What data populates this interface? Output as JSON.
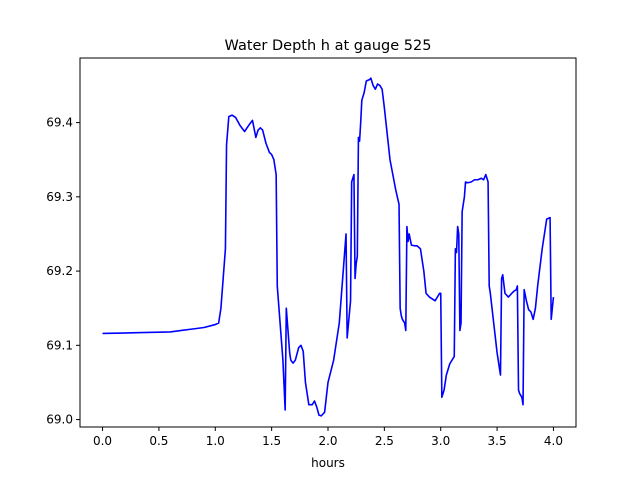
{
  "chart_data": {
    "type": "line",
    "title": "Water Depth h at gauge 525",
    "xlabel": "hours",
    "ylabel": "",
    "xlim": [
      -0.2,
      4.2
    ],
    "ylim": [
      68.99,
      69.487
    ],
    "xticks": [
      0.0,
      0.5,
      1.0,
      1.5,
      2.0,
      2.5,
      3.0,
      3.5,
      4.0
    ],
    "xtick_labels": [
      "0.0",
      "0.5",
      "1.0",
      "1.5",
      "2.0",
      "2.5",
      "3.0",
      "3.5",
      "4.0"
    ],
    "yticks": [
      69.0,
      69.1,
      69.2,
      69.3,
      69.4
    ],
    "ytick_labels": [
      "69.0",
      "69.1",
      "69.2",
      "69.3",
      "69.4"
    ],
    "grid": false,
    "series": [
      {
        "color": "#0000ff",
        "x": [
          0.0,
          0.3,
          0.6,
          0.7,
          0.8,
          0.9,
          1.0,
          1.03,
          1.05,
          1.07,
          1.09,
          1.1,
          1.12,
          1.15,
          1.18,
          1.22,
          1.26,
          1.3,
          1.33,
          1.36,
          1.38,
          1.4,
          1.42,
          1.45,
          1.48,
          1.5,
          1.52,
          1.54,
          1.55,
          1.56,
          1.6,
          1.62,
          1.63,
          1.64,
          1.66,
          1.67,
          1.69,
          1.71,
          1.74,
          1.76,
          1.78,
          1.8,
          1.83,
          1.86,
          1.88,
          1.9,
          1.92,
          1.94,
          1.97,
          2.0,
          2.05,
          2.1,
          2.16,
          2.17,
          2.2,
          2.21,
          2.22,
          2.23,
          2.24,
          2.25,
          2.26,
          2.27,
          2.28,
          2.29,
          2.3,
          2.32,
          2.34,
          2.37,
          2.38,
          2.4,
          2.42,
          2.44,
          2.46,
          2.48,
          2.5,
          2.55,
          2.6,
          2.63,
          2.64,
          2.65,
          2.66,
          2.68,
          2.69,
          2.7,
          2.71,
          2.72,
          2.74,
          2.77,
          2.79,
          2.82,
          2.85,
          2.87,
          2.9,
          2.95,
          2.99,
          3.0,
          3.01,
          3.03,
          3.05,
          3.08,
          3.12,
          3.13,
          3.14,
          3.15,
          3.16,
          3.17,
          3.18,
          3.19,
          3.2,
          3.21,
          3.22,
          3.24,
          3.27,
          3.3,
          3.33,
          3.36,
          3.38,
          3.4,
          3.41,
          3.42,
          3.43,
          3.44,
          3.47,
          3.5,
          3.53,
          3.54,
          3.55,
          3.57,
          3.6,
          3.63,
          3.65,
          3.67,
          3.68,
          3.69,
          3.7,
          3.72,
          3.73,
          3.74,
          3.76,
          3.78,
          3.8,
          3.82,
          3.84,
          3.86,
          3.9,
          3.94,
          3.97,
          3.98,
          3.99,
          4.0
        ],
        "y": [
          69.116,
          69.117,
          69.118,
          69.12,
          69.122,
          69.124,
          69.128,
          69.13,
          69.15,
          69.19,
          69.23,
          69.37,
          69.408,
          69.41,
          69.407,
          69.396,
          69.388,
          69.397,
          69.403,
          69.38,
          69.39,
          69.393,
          69.39,
          69.372,
          69.36,
          69.357,
          69.35,
          69.33,
          69.18,
          69.16,
          69.08,
          69.013,
          69.15,
          69.13,
          69.09,
          69.08,
          69.076,
          69.08,
          69.097,
          69.1,
          69.092,
          69.05,
          69.02,
          69.02,
          69.025,
          69.017,
          69.006,
          69.005,
          69.01,
          69.05,
          69.08,
          69.13,
          69.25,
          69.11,
          69.16,
          69.32,
          69.325,
          69.33,
          69.19,
          69.21,
          69.22,
          69.38,
          69.375,
          69.4,
          69.43,
          69.44,
          69.456,
          69.458,
          69.46,
          69.45,
          69.445,
          69.452,
          69.45,
          69.445,
          69.42,
          69.35,
          69.31,
          69.29,
          69.15,
          69.14,
          69.135,
          69.13,
          69.12,
          69.26,
          69.24,
          69.25,
          69.235,
          69.234,
          69.234,
          69.23,
          69.2,
          69.17,
          69.165,
          69.16,
          69.17,
          69.17,
          69.03,
          69.04,
          69.06,
          69.075,
          69.085,
          69.23,
          69.225,
          69.26,
          69.25,
          69.12,
          69.13,
          69.28,
          69.29,
          69.3,
          69.32,
          69.319,
          69.32,
          69.323,
          69.323,
          69.325,
          69.323,
          69.33,
          69.325,
          69.32,
          69.18,
          69.17,
          69.13,
          69.09,
          69.06,
          69.19,
          69.195,
          69.17,
          69.165,
          69.17,
          69.173,
          69.175,
          69.18,
          69.04,
          69.035,
          69.03,
          69.02,
          69.175,
          69.16,
          69.148,
          69.145,
          69.135,
          69.15,
          69.18,
          69.23,
          69.27,
          69.272,
          69.135,
          69.15,
          69.165
        ]
      }
    ]
  }
}
